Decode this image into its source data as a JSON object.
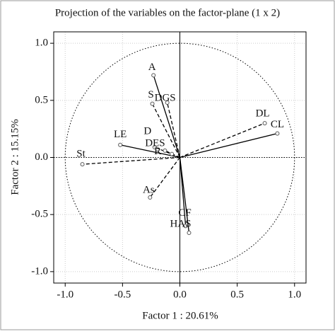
{
  "chart_data": {
    "type": "scatter",
    "title": "Projection of the variables on the factor-plane (1 x 2)",
    "x_label": "Factor 1 : 20.61%",
    "y_label": "Factor 2 : 15.15%",
    "xlim": [
      -1.1,
      1.1
    ],
    "ylim": [
      -1.1,
      1.1
    ],
    "xticks": [
      {
        "value": -1,
        "label": "-1.0"
      },
      {
        "value": -0.5,
        "label": "-0.5"
      },
      {
        "value": 0,
        "label": "0.0"
      },
      {
        "value": 0.5,
        "label": "0.5"
      },
      {
        "value": 1,
        "label": "1.0"
      }
    ],
    "yticks": [
      {
        "value": -1,
        "label": "-1.0"
      },
      {
        "value": -0.5,
        "label": "-0.5"
      },
      {
        "value": 0,
        "label": "0.0"
      },
      {
        "value": 0.5,
        "label": "0.5"
      },
      {
        "value": 1,
        "label": "1.0"
      }
    ],
    "grid": true,
    "points": [
      {
        "name": "A",
        "x": -0.23,
        "y": 0.72,
        "line_style": "solid"
      },
      {
        "name": "S",
        "x": -0.24,
        "y": 0.47,
        "line_style": "dashed"
      },
      {
        "name": "DGS",
        "x": -0.11,
        "y": 0.48,
        "line_style": "dashed"
      },
      {
        "name": "DL",
        "x": 0.74,
        "y": 0.3,
        "line_style": "dashed"
      },
      {
        "name": "CL",
        "x": 0.85,
        "y": 0.21,
        "line_style": "solid"
      },
      {
        "name": "LE",
        "x": -0.52,
        "y": 0.11,
        "line_style": "solid"
      },
      {
        "name": "D",
        "x": -0.22,
        "y": 0.09,
        "line_style": "dashed"
      },
      {
        "name": "DES",
        "x": -0.13,
        "y": 0.06,
        "line_style": "dashed"
      },
      {
        "name": "R",
        "x": -0.07,
        "y": 0.03,
        "line_style": "dashed"
      },
      {
        "name": "St",
        "x": -0.85,
        "y": -0.06,
        "line_style": "dashed"
      },
      {
        "name": "As",
        "x": -0.26,
        "y": -0.35,
        "line_style": "dashed"
      },
      {
        "name": "CF",
        "x": 0.05,
        "y": -0.6,
        "line_style": "solid"
      },
      {
        "name": "HAS",
        "x": 0.08,
        "y": -0.66,
        "line_style": "solid"
      }
    ]
  }
}
